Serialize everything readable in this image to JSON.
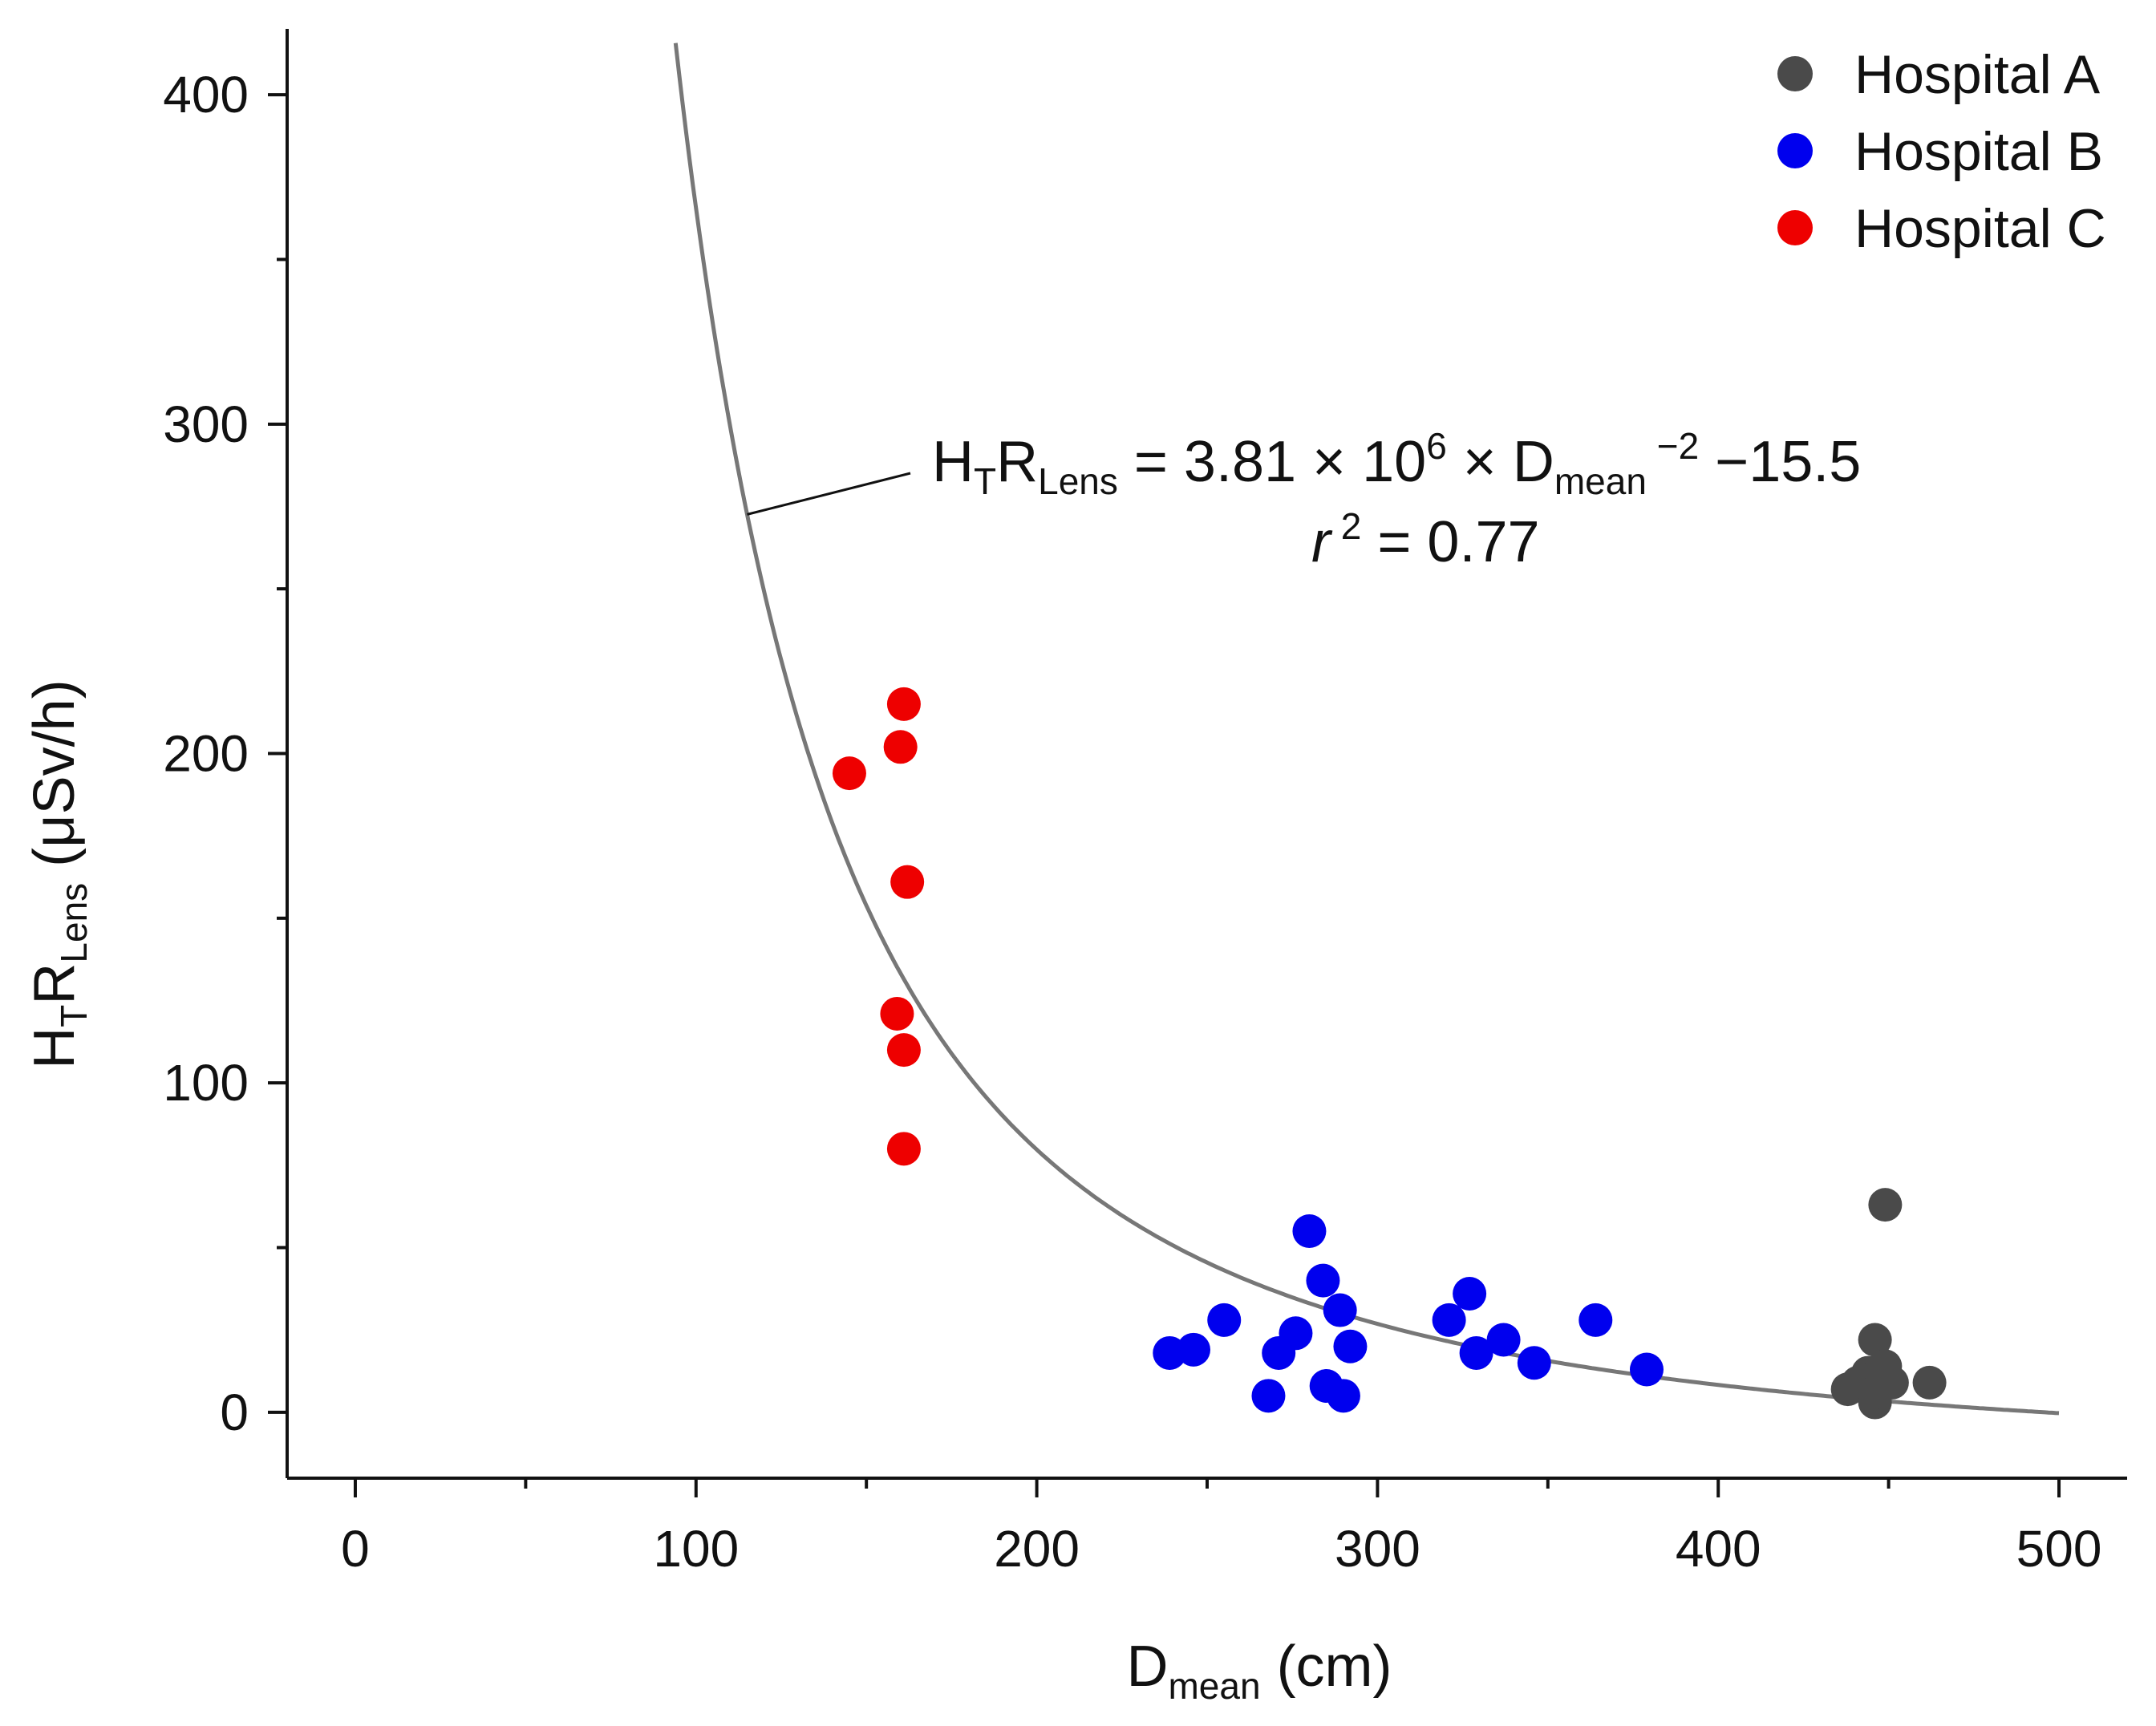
{
  "chart_data": {
    "type": "scatter",
    "xlabel": {
      "main": "D",
      "sub": "mean",
      "rest": " (cm)"
    },
    "ylabel": {
      "h": "H",
      "hsub": "T",
      "r": "R",
      "rsub": "Lens",
      "rest": " (μSv/h)"
    },
    "xlim": [
      -20,
      520
    ],
    "ylim": [
      -20,
      420
    ],
    "xticks": [
      0,
      100,
      200,
      300,
      400,
      500
    ],
    "xtick_labels": [
      "0",
      "100",
      "200",
      "300",
      "400",
      "500"
    ],
    "yticks": [
      0,
      100,
      200,
      300,
      400
    ],
    "ytick_labels": [
      "0",
      "100",
      "200",
      "300",
      "400"
    ],
    "grid": false,
    "legend_position": "top-right",
    "series": [
      {
        "name": "Hospital A",
        "color": "#4a4a4a",
        "x": [
          438,
          441,
          443,
          444,
          445,
          446,
          446,
          447,
          448,
          449,
          450,
          451,
          462,
          446,
          449
        ],
        "y": [
          7,
          9,
          8,
          12,
          10,
          3,
          22,
          9,
          11,
          14,
          10,
          9,
          9,
          6,
          63
        ]
      },
      {
        "name": "Hospital B",
        "color": "#0000ee",
        "x": [
          239,
          246,
          255,
          268,
          271,
          276,
          280,
          284,
          285,
          289,
          290,
          292,
          321,
          327,
          329,
          337,
          346,
          364,
          379
        ],
        "y": [
          18,
          19,
          28,
          5,
          18,
          24,
          55,
          40,
          8,
          31,
          5,
          20,
          28,
          36,
          18,
          22,
          15,
          28,
          13
        ]
      },
      {
        "name": "Hospital C",
        "color": "#ee0000",
        "x": [
          145,
          160,
          161,
          162,
          159,
          161,
          161
        ],
        "y": [
          194,
          202,
          215,
          161,
          121,
          110,
          80
        ]
      }
    ],
    "fit": {
      "a": 3810000,
      "b": -15.5,
      "x_start": 94,
      "x_end": 500,
      "color": "#777777",
      "equation": {
        "h": "H",
        "hsub": "T",
        "r": "R",
        "rsub": "Lens",
        "mid": " = 3.81 × 10",
        "exp": "6",
        "times": " × D",
        "dsub": "mean",
        "dexp": " −2",
        "tail": " −15.5"
      },
      "r2": {
        "r": "r",
        "sup": " 2",
        "rest": " = 0.77"
      },
      "pointer_x": 115
    }
  }
}
